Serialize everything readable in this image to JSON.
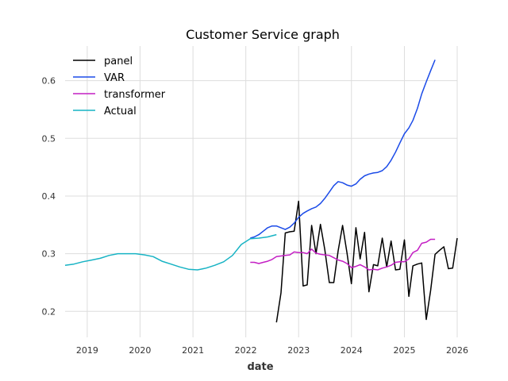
{
  "chart_data": {
    "type": "line",
    "title": "Customer Service graph",
    "xlabel": "date",
    "ylabel": "",
    "xlim": [
      "2018-08-01",
      "2026-01-01"
    ],
    "ylim": [
      0.155,
      0.66
    ],
    "x_ticks": [
      "2019",
      "2020",
      "2021",
      "2022",
      "2023",
      "2024",
      "2025",
      "2026"
    ],
    "y_ticks": [
      "0.2",
      "0.3",
      "0.4",
      "0.5",
      "0.6"
    ],
    "grid": true,
    "legend": "top-left",
    "series": [
      {
        "name": "panel",
        "color": "#000000",
        "points": [
          [
            "2022-08-01",
            0.181
          ],
          [
            "2022-09-01",
            0.232
          ],
          [
            "2022-10-01",
            0.336
          ],
          [
            "2022-11-01",
            0.338
          ],
          [
            "2022-12-01",
            0.339
          ],
          [
            "2023-01-01",
            0.391
          ],
          [
            "2023-02-01",
            0.244
          ],
          [
            "2023-03-01",
            0.246
          ],
          [
            "2023-04-01",
            0.349
          ],
          [
            "2023-05-01",
            0.3
          ],
          [
            "2023-06-01",
            0.351
          ],
          [
            "2023-07-01",
            0.307
          ],
          [
            "2023-08-01",
            0.25
          ],
          [
            "2023-09-01",
            0.25
          ],
          [
            "2023-10-01",
            0.305
          ],
          [
            "2023-11-01",
            0.349
          ],
          [
            "2023-12-01",
            0.302
          ],
          [
            "2024-01-01",
            0.248
          ],
          [
            "2024-02-01",
            0.345
          ],
          [
            "2024-03-01",
            0.291
          ],
          [
            "2024-04-01",
            0.337
          ],
          [
            "2024-05-01",
            0.234
          ],
          [
            "2024-06-01",
            0.281
          ],
          [
            "2024-07-01",
            0.279
          ],
          [
            "2024-08-01",
            0.327
          ],
          [
            "2024-09-01",
            0.277
          ],
          [
            "2024-10-01",
            0.322
          ],
          [
            "2024-11-01",
            0.272
          ],
          [
            "2024-12-01",
            0.273
          ],
          [
            "2025-01-01",
            0.324
          ],
          [
            "2025-02-01",
            0.226
          ],
          [
            "2025-03-01",
            0.279
          ],
          [
            "2025-04-01",
            0.282
          ],
          [
            "2025-05-01",
            0.284
          ],
          [
            "2025-06-01",
            0.186
          ],
          [
            "2025-07-01",
            0.236
          ],
          [
            "2025-08-01",
            0.299
          ],
          [
            "2025-09-01",
            0.306
          ],
          [
            "2025-10-01",
            0.312
          ],
          [
            "2025-11-01",
            0.274
          ],
          [
            "2025-12-01",
            0.275
          ],
          [
            "2026-01-01",
            0.327
          ]
        ]
      },
      {
        "name": "VAR",
        "color": "#1b4be8",
        "points": [
          [
            "2022-02-01",
            0.327
          ],
          [
            "2022-03-01",
            0.329
          ],
          [
            "2022-04-01",
            0.333
          ],
          [
            "2022-05-01",
            0.339
          ],
          [
            "2022-06-01",
            0.345
          ],
          [
            "2022-07-01",
            0.348
          ],
          [
            "2022-08-01",
            0.348
          ],
          [
            "2022-09-01",
            0.345
          ],
          [
            "2022-10-01",
            0.342
          ],
          [
            "2022-11-01",
            0.346
          ],
          [
            "2022-12-01",
            0.353
          ],
          [
            "2023-01-01",
            0.363
          ],
          [
            "2023-02-01",
            0.37
          ],
          [
            "2023-03-01",
            0.374
          ],
          [
            "2023-04-01",
            0.378
          ],
          [
            "2023-05-01",
            0.381
          ],
          [
            "2023-06-01",
            0.387
          ],
          [
            "2023-07-01",
            0.396
          ],
          [
            "2023-08-01",
            0.407
          ],
          [
            "2023-09-01",
            0.418
          ],
          [
            "2023-10-01",
            0.425
          ],
          [
            "2023-11-01",
            0.423
          ],
          [
            "2023-12-01",
            0.419
          ],
          [
            "2024-01-01",
            0.417
          ],
          [
            "2024-02-01",
            0.421
          ],
          [
            "2024-03-01",
            0.429
          ],
          [
            "2024-04-01",
            0.435
          ],
          [
            "2024-05-01",
            0.438
          ],
          [
            "2024-06-01",
            0.44
          ],
          [
            "2024-07-01",
            0.441
          ],
          [
            "2024-08-01",
            0.444
          ],
          [
            "2024-09-01",
            0.451
          ],
          [
            "2024-10-01",
            0.462
          ],
          [
            "2024-11-01",
            0.476
          ],
          [
            "2024-12-01",
            0.492
          ],
          [
            "2025-01-01",
            0.508
          ],
          [
            "2025-02-01",
            0.518
          ],
          [
            "2025-03-01",
            0.531
          ],
          [
            "2025-04-01",
            0.552
          ],
          [
            "2025-05-01",
            0.577
          ],
          [
            "2025-06-01",
            0.598
          ],
          [
            "2025-07-01",
            0.617
          ],
          [
            "2025-08-01",
            0.636
          ]
        ]
      },
      {
        "name": "transformer",
        "color": "#c41fc4",
        "points": [
          [
            "2022-02-01",
            0.285
          ],
          [
            "2022-03-01",
            0.285
          ],
          [
            "2022-04-01",
            0.283
          ],
          [
            "2022-05-01",
            0.285
          ],
          [
            "2022-06-01",
            0.287
          ],
          [
            "2022-07-01",
            0.29
          ],
          [
            "2022-08-01",
            0.295
          ],
          [
            "2022-09-01",
            0.296
          ],
          [
            "2022-10-01",
            0.297
          ],
          [
            "2022-11-01",
            0.298
          ],
          [
            "2022-12-01",
            0.303
          ],
          [
            "2023-01-01",
            0.302
          ],
          [
            "2023-02-01",
            0.302
          ],
          [
            "2023-03-01",
            0.3
          ],
          [
            "2023-04-01",
            0.308
          ],
          [
            "2023-05-01",
            0.301
          ],
          [
            "2023-06-01",
            0.299
          ],
          [
            "2023-07-01",
            0.298
          ],
          [
            "2023-08-01",
            0.297
          ],
          [
            "2023-09-01",
            0.293
          ],
          [
            "2023-10-01",
            0.289
          ],
          [
            "2023-11-01",
            0.287
          ],
          [
            "2023-12-01",
            0.283
          ],
          [
            "2024-01-01",
            0.276
          ],
          [
            "2024-02-01",
            0.278
          ],
          [
            "2024-03-01",
            0.281
          ],
          [
            "2024-04-01",
            0.277
          ],
          [
            "2024-05-01",
            0.272
          ],
          [
            "2024-06-01",
            0.273
          ],
          [
            "2024-07-01",
            0.272
          ],
          [
            "2024-08-01",
            0.275
          ],
          [
            "2024-09-01",
            0.277
          ],
          [
            "2024-10-01",
            0.28
          ],
          [
            "2024-11-01",
            0.285
          ],
          [
            "2024-12-01",
            0.286
          ],
          [
            "2025-01-01",
            0.286
          ],
          [
            "2025-02-01",
            0.291
          ],
          [
            "2025-03-01",
            0.302
          ],
          [
            "2025-04-01",
            0.306
          ],
          [
            "2025-05-01",
            0.318
          ],
          [
            "2025-06-01",
            0.32
          ],
          [
            "2025-07-01",
            0.325
          ],
          [
            "2025-08-01",
            0.325
          ]
        ]
      },
      {
        "name": "Actual",
        "color": "#17b3c4",
        "points": [
          [
            "2018-08-01",
            0.28
          ],
          [
            "2018-10-01",
            0.282
          ],
          [
            "2018-12-01",
            0.286
          ],
          [
            "2019-02-01",
            0.289
          ],
          [
            "2019-04-01",
            0.292
          ],
          [
            "2019-06-01",
            0.297
          ],
          [
            "2019-08-01",
            0.3
          ],
          [
            "2019-10-01",
            0.3
          ],
          [
            "2019-12-01",
            0.3
          ],
          [
            "2020-02-01",
            0.298
          ],
          [
            "2020-04-01",
            0.295
          ],
          [
            "2020-06-01",
            0.287
          ],
          [
            "2020-08-01",
            0.282
          ],
          [
            "2020-10-01",
            0.277
          ],
          [
            "2020-12-01",
            0.273
          ],
          [
            "2021-02-01",
            0.272
          ],
          [
            "2021-04-01",
            0.275
          ],
          [
            "2021-06-01",
            0.28
          ],
          [
            "2021-08-01",
            0.286
          ],
          [
            "2021-10-01",
            0.297
          ],
          [
            "2021-12-01",
            0.316
          ],
          [
            "2022-02-01",
            0.326
          ],
          [
            "2022-04-01",
            0.327
          ],
          [
            "2022-06-01",
            0.329
          ],
          [
            "2022-08-01",
            0.333
          ]
        ]
      }
    ]
  }
}
